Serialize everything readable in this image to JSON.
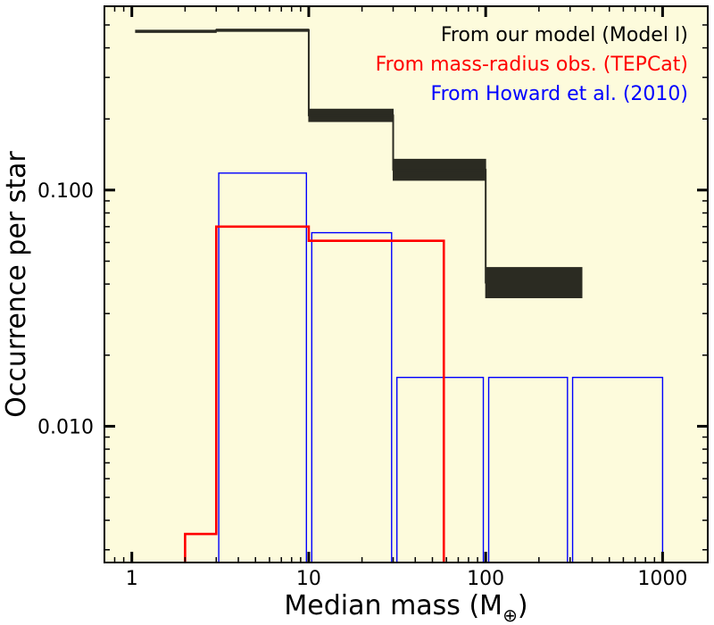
{
  "chart_data": {
    "type": "step",
    "xscale": "log",
    "yscale": "log",
    "xlabel": "Median mass (M",
    "xlabel_subscript": "⊕",
    "xlabel_close": ")",
    "ylabel": "Occurrence per star",
    "xlim": [
      0.7,
      1800
    ],
    "ylim": [
      0.00265,
      0.6
    ],
    "x_ticks": [
      {
        "value": 1,
        "label": "1"
      },
      {
        "value": 10,
        "label": "10"
      },
      {
        "value": 100,
        "label": "100"
      },
      {
        "value": 1000,
        "label": "1000"
      }
    ],
    "y_ticks": [
      {
        "value": 0.1,
        "label": "0.100"
      },
      {
        "value": 0.01,
        "label": "0.010"
      }
    ],
    "colors": {
      "background": "#fdfbdc",
      "model": "#2b2b22",
      "tepcat": "#ff0000",
      "howard": "#0000ff"
    },
    "legend": [
      {
        "label": "From our model (Model I)",
        "color": "#000000"
      },
      {
        "label": "From mass-radius obs. (TEPCat)",
        "color": "#ff0000"
      },
      {
        "label": "From Howard et al. (2010)",
        "color": "#0000ff"
      }
    ],
    "series": [
      {
        "name": "From our model (Model I)",
        "kind": "band",
        "bins": [
          {
            "x0": 1.05,
            "x1": 3.0,
            "ylo": 0.47,
            "yhi": 0.475
          },
          {
            "x0": 3.0,
            "x1": 10,
            "ylo": 0.47,
            "yhi": 0.48
          },
          {
            "x0": 10,
            "x1": 30,
            "ylo": 0.195,
            "yhi": 0.22
          },
          {
            "x0": 30,
            "x1": 100,
            "ylo": 0.11,
            "yhi": 0.135
          },
          {
            "x0": 100,
            "x1": 350,
            "ylo": 0.035,
            "yhi": 0.047
          }
        ]
      },
      {
        "name": "From mass-radius obs. (TEPCat)",
        "kind": "step",
        "points": [
          [
            2.0,
            0.0026
          ],
          [
            2.0,
            0.0035
          ],
          [
            3.0,
            0.0035
          ],
          [
            3.0,
            0.07
          ],
          [
            10,
            0.07
          ],
          [
            10,
            0.061
          ],
          [
            58,
            0.061
          ],
          [
            58,
            0.0026
          ]
        ]
      },
      {
        "name": "From Howard et al. (2010)",
        "kind": "bars",
        "bins": [
          {
            "x0": 3.1,
            "x1": 9.7,
            "value": 0.118
          },
          {
            "x0": 10.4,
            "x1": 29.4,
            "value": 0.066
          },
          {
            "x0": 31.5,
            "x1": 97,
            "value": 0.0161
          },
          {
            "x0": 104,
            "x1": 290,
            "value": 0.0161
          },
          {
            "x0": 310,
            "x1": 1000,
            "value": 0.0161
          }
        ]
      }
    ]
  }
}
